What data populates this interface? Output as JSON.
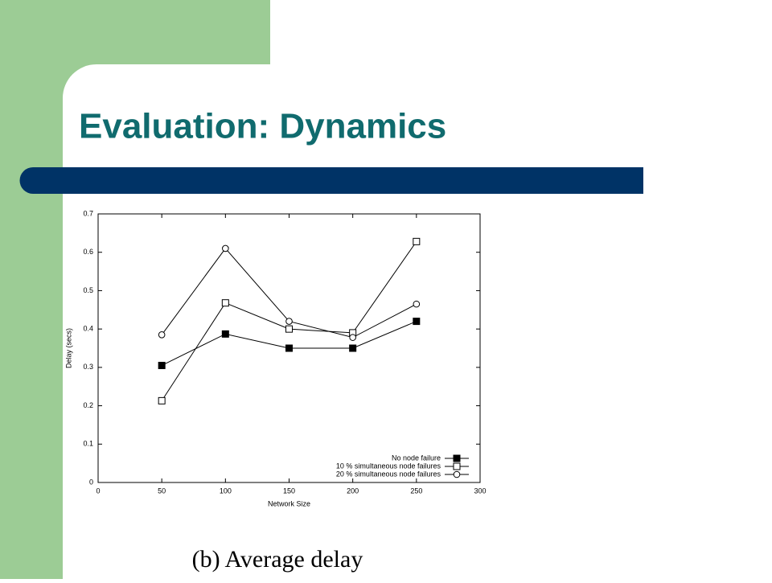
{
  "slide": {
    "title": "Evaluation: Dynamics",
    "caption": "(b) Average delay"
  },
  "chart_data": {
    "type": "line",
    "x_label": "Network Size",
    "y_label": "Delay (secs)",
    "xlim": [
      0,
      300
    ],
    "xticks": [
      0,
      50,
      100,
      150,
      200,
      250,
      300
    ],
    "ylim": [
      0,
      0.7
    ],
    "yticks": [
      0,
      0.1,
      0.2,
      0.3,
      0.4,
      0.5,
      0.6,
      0.7
    ],
    "legend": "lower right",
    "x": [
      50,
      100,
      150,
      200,
      250
    ],
    "series": [
      {
        "name": "No node failure",
        "color": "#000000",
        "marker": "filled-square",
        "values": [
          0.305,
          0.387,
          0.35,
          0.35,
          0.42
        ]
      },
      {
        "name": "10 % simultaneous node failures",
        "color": "#000000",
        "marker": "open-square",
        "values": [
          0.213,
          0.468,
          0.4,
          0.39,
          0.628
        ]
      },
      {
        "name": "20 % simultaneous node failures",
        "color": "#000000",
        "marker": "open-circle",
        "values": [
          0.385,
          0.61,
          0.42,
          0.378,
          0.465
        ]
      }
    ]
  }
}
